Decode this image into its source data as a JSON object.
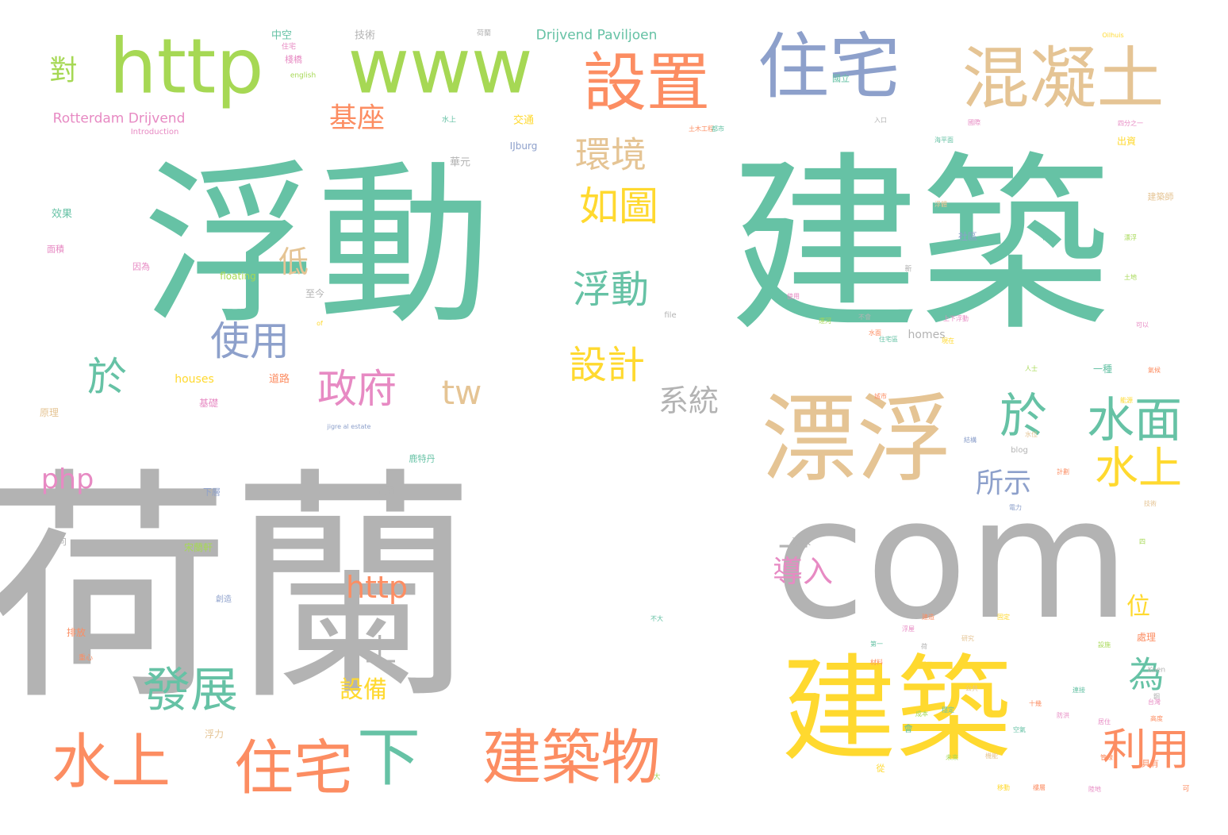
{
  "palette": {
    "teal": "#66c2a5",
    "orange": "#fc8d62",
    "blue": "#8da0cb",
    "pink": "#e78ac3",
    "green": "#a6d854",
    "yellow": "#ffd92f",
    "tan": "#e5c494",
    "gray": "#b3b3b3"
  },
  "words": [
    {
      "text": "荷蘭",
      "color": "gray"
    },
    {
      "text": "com",
      "color": "gray"
    },
    {
      "text": "建築",
      "color": "teal"
    },
    {
      "text": "浮動",
      "color": "teal"
    },
    {
      "text": "建築",
      "color": "yellow"
    },
    {
      "text": "漂浮",
      "color": "tan"
    },
    {
      "text": "www",
      "color": "green"
    },
    {
      "text": "http",
      "color": "green"
    },
    {
      "text": "住宅",
      "color": "blue"
    },
    {
      "text": "混凝土",
      "color": "tan"
    },
    {
      "text": "設置",
      "color": "orange"
    },
    {
      "text": "建築物",
      "color": "orange"
    },
    {
      "text": "住宅",
      "color": "orange"
    },
    {
      "text": "水上",
      "color": "orange"
    },
    {
      "text": "下",
      "color": "teal"
    },
    {
      "text": "水面",
      "color": "teal"
    },
    {
      "text": "於",
      "color": "teal"
    },
    {
      "text": "水上",
      "color": "yellow"
    },
    {
      "text": "利用",
      "color": "orange"
    },
    {
      "text": "發展",
      "color": "teal"
    },
    {
      "text": "政府",
      "color": "pink"
    },
    {
      "text": "tw",
      "color": "tan"
    },
    {
      "text": "使用",
      "color": "blue"
    },
    {
      "text": "浮動",
      "color": "teal"
    },
    {
      "text": "如圖",
      "color": "yellow"
    },
    {
      "text": "環境",
      "color": "tan"
    },
    {
      "text": "設計",
      "color": "yellow"
    },
    {
      "text": "系統",
      "color": "gray"
    },
    {
      "text": "http",
      "color": "orange"
    },
    {
      "text": "php",
      "color": "pink"
    },
    {
      "text": "所示",
      "color": "blue"
    },
    {
      "text": "導入",
      "color": "pink"
    },
    {
      "text": "為",
      "color": "teal"
    },
    {
      "text": "於",
      "color": "teal"
    },
    {
      "text": "基座",
      "color": "orange"
    },
    {
      "text": "對",
      "color": "green"
    },
    {
      "text": "低",
      "color": "tan"
    },
    {
      "text": "上",
      "color": "gray"
    },
    {
      "text": "設備",
      "color": "yellow"
    },
    {
      "text": "位",
      "color": "yellow"
    },
    {
      "text": "Rotterdam Drijvend",
      "color": "pink"
    },
    {
      "text": "Drijvend Paviljoen",
      "color": "teal"
    },
    {
      "text": "一",
      "color": "gray"
    },
    {
      "text": "houses",
      "color": "yellow"
    },
    {
      "text": "homes",
      "color": "gray"
    },
    {
      "text": "IJburg",
      "color": "blue"
    },
    {
      "text": "floating",
      "color": "green"
    },
    {
      "text": "Introduction",
      "color": "pink"
    },
    {
      "text": "english",
      "color": "green"
    },
    {
      "text": "file",
      "color": "gray"
    },
    {
      "text": "blog",
      "color": "gray"
    },
    {
      "text": "Koen",
      "color": "gray"
    },
    {
      "text": "jigre al estate",
      "color": "blue"
    },
    {
      "text": "中空",
      "color": "teal"
    },
    {
      "text": "技術",
      "color": "gray"
    },
    {
      "text": "棧橋",
      "color": "pink"
    },
    {
      "text": "交通",
      "color": "yellow"
    },
    {
      "text": "華元",
      "color": "gray"
    },
    {
      "text": "效果",
      "color": "teal"
    },
    {
      "text": "面積",
      "color": "pink"
    },
    {
      "text": "因為",
      "color": "pink"
    },
    {
      "text": "至今",
      "color": "gray"
    },
    {
      "text": "道路",
      "color": "orange"
    },
    {
      "text": "基礎",
      "color": "pink"
    },
    {
      "text": "原理",
      "color": "tan"
    },
    {
      "text": "空間",
      "color": "gray"
    },
    {
      "text": "下層",
      "color": "blue"
    },
    {
      "text": "方向",
      "color": "gray"
    },
    {
      "text": "排放",
      "color": "orange"
    },
    {
      "text": "宋蘭軒",
      "color": "green"
    },
    {
      "text": "污水",
      "color": "gray"
    },
    {
      "text": "浮力",
      "color": "tan"
    },
    {
      "text": "出資",
      "color": "yellow"
    },
    {
      "text": "社區",
      "color": "blue"
    },
    {
      "text": "一種",
      "color": "teal"
    },
    {
      "text": "處理",
      "color": "orange"
    },
    {
      "text": "具有",
      "color": "orange"
    },
    {
      "text": "從",
      "color": "yellow"
    },
    {
      "text": "會",
      "color": "teal"
    },
    {
      "text": "國立",
      "color": "teal"
    },
    {
      "text": "創造",
      "color": "blue"
    },
    {
      "text": "重心",
      "color": "orange"
    },
    {
      "text": "荷蘭",
      "color": "gray"
    },
    {
      "text": "水上",
      "color": "teal"
    },
    {
      "text": "住宅",
      "color": "pink"
    },
    {
      "text": "新",
      "color": "gray"
    },
    {
      "text": "可",
      "color": "orange"
    },
    {
      "text": "大",
      "color": "green"
    },
    {
      "text": "入口",
      "color": "gray"
    },
    {
      "text": "四分之一",
      "color": "pink"
    },
    {
      "text": "Oilhuis",
      "color": "yellow"
    },
    {
      "text": "建築師",
      "color": "tan"
    },
    {
      "text": "鹿特丹",
      "color": "teal"
    },
    {
      "text": "一",
      "color": "gray"
    },
    {
      "text": "國際",
      "color": "pink"
    },
    {
      "text": "水面",
      "color": "orange"
    },
    {
      "text": "漂浮",
      "color": "green"
    },
    {
      "text": "of",
      "color": "yellow"
    },
    {
      "text": "土木工程",
      "color": "orange"
    },
    {
      "text": "都市",
      "color": "teal"
    },
    {
      "text": "浮體",
      "color": "tan"
    },
    {
      "text": "土地",
      "color": "green"
    },
    {
      "text": "使用",
      "color": "pink"
    },
    {
      "text": "住宅區",
      "color": "teal"
    },
    {
      "text": "城市",
      "color": "orange"
    },
    {
      "text": "結構",
      "color": "blue"
    },
    {
      "text": "能源",
      "color": "yellow"
    },
    {
      "text": "上下浮動",
      "color": "pink"
    },
    {
      "text": "水位",
      "color": "tan"
    },
    {
      "text": "海平面",
      "color": "teal"
    },
    {
      "text": "氣候",
      "color": "orange"
    },
    {
      "text": "人士",
      "color": "green"
    },
    {
      "text": "不會",
      "color": "gray"
    },
    {
      "text": "可以",
      "color": "pink"
    },
    {
      "text": "需要",
      "color": "teal"
    },
    {
      "text": "技術",
      "color": "tan"
    },
    {
      "text": "計劃",
      "color": "orange"
    },
    {
      "text": "現在",
      "color": "yellow"
    },
    {
      "text": "運河",
      "color": "green"
    },
    {
      "text": "電力",
      "color": "blue"
    },
    {
      "text": "居住",
      "color": "pink"
    },
    {
      "text": "連接",
      "color": "teal"
    },
    {
      "text": "管線",
      "color": "orange"
    },
    {
      "text": "公共",
      "color": "tan"
    },
    {
      "text": "設施",
      "color": "green"
    },
    {
      "text": "固定",
      "color": "yellow"
    },
    {
      "text": "鋼",
      "color": "gray"
    },
    {
      "text": "防洪",
      "color": "pink"
    },
    {
      "text": "不大",
      "color": "teal"
    },
    {
      "text": "十幾",
      "color": "orange"
    },
    {
      "text": "四",
      "color": "green"
    },
    {
      "text": "研究",
      "color": "tan"
    },
    {
      "text": "建造",
      "color": "orange"
    },
    {
      "text": "第一",
      "color": "teal"
    },
    {
      "text": "浮屋",
      "color": "pink"
    },
    {
      "text": "荷",
      "color": "gray"
    },
    {
      "text": "單元",
      "color": "yellow"
    },
    {
      "text": "材料",
      "color": "orange"
    },
    {
      "text": "成本",
      "color": "green"
    },
    {
      "text": "空氣",
      "color": "teal"
    },
    {
      "text": "台灣",
      "color": "pink"
    },
    {
      "text": "機能",
      "color": "tan"
    },
    {
      "text": "樓層",
      "color": "orange"
    },
    {
      "text": "未來",
      "color": "green"
    },
    {
      "text": "移動",
      "color": "yellow"
    },
    {
      "text": "穩定",
      "color": "teal"
    },
    {
      "text": "陸地",
      "color": "pink"
    },
    {
      "text": "高度",
      "color": "orange"
    }
  ]
}
